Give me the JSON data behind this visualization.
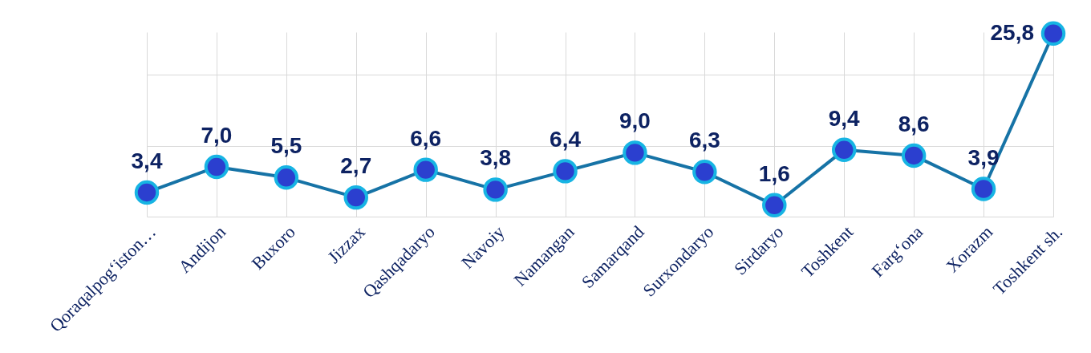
{
  "chart_data": {
    "type": "line",
    "categories": [
      "Qoraqalpogʻiston…",
      "Andijon",
      "Buxoro",
      "Jizzax",
      "Qashqadaryo",
      "Navoiy",
      "Namangan",
      "Samarqand",
      "Surxondaryo",
      "Sirdaryo",
      "Toshkent",
      "Fargʻona",
      "Xorazm",
      "Toshkent sh."
    ],
    "series": [
      {
        "color": "#1673a6",
        "values": [
          3.4,
          7.0,
          5.5,
          2.7,
          6.6,
          3.8,
          6.4,
          9.0,
          6.3,
          1.6,
          9.4,
          8.6,
          3.9,
          25.8
        ],
        "value_labels": [
          "3,4",
          "7,0",
          "5,5",
          "2,7",
          "6,6",
          "3,8",
          "6,4",
          "9,0",
          "6,3",
          "1,6",
          "9,4",
          "8,6",
          "3,9",
          "25,8"
        ]
      }
    ],
    "grid": true,
    "marker": "circle",
    "tick_labels": "x"
  }
}
